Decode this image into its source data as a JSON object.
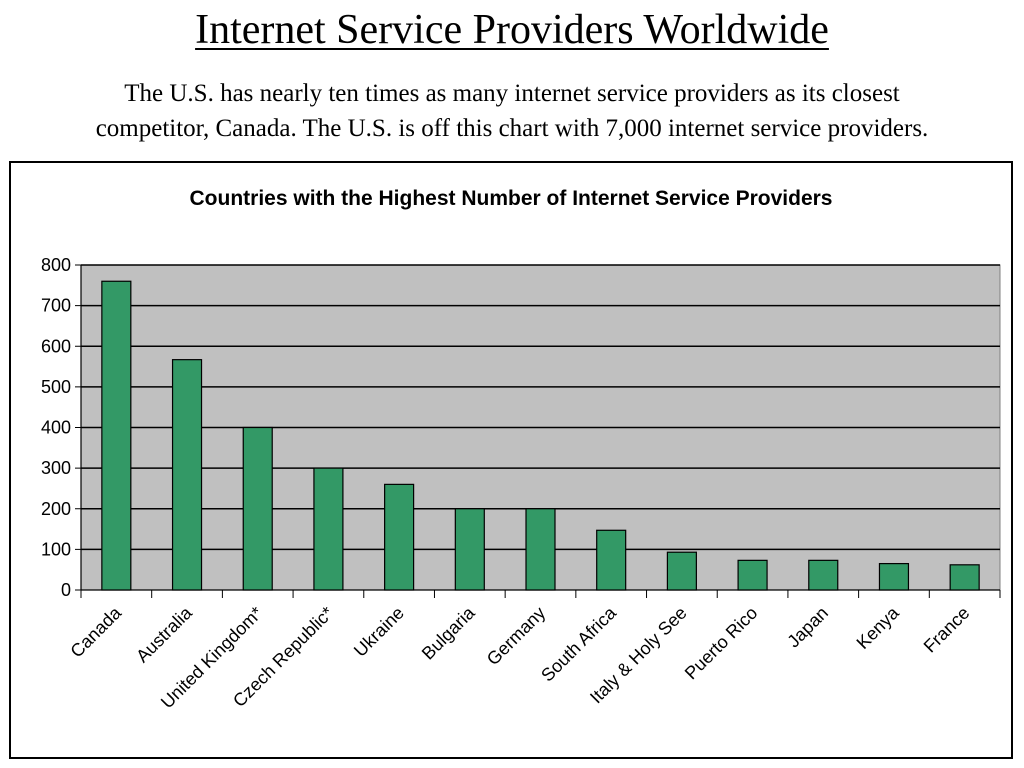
{
  "slide": {
    "title": "Internet Service Providers Worldwide",
    "subtitle_line1": "The U.S. has nearly ten times as many internet service providers as its closest",
    "subtitle_line2": "competitor, Canada.  The U.S. is off this chart with 7,000 internet service providers."
  },
  "chart_data": {
    "type": "bar",
    "title": "Countries with the Highest Number of Internet Service Providers",
    "xlabel": "",
    "ylabel": "",
    "categories": [
      "Canada",
      "Australia",
      "United Kingdom*",
      "Czech Republic*",
      "Ukraine",
      "Bulgaria",
      "Germany",
      "South Africa",
      "Italy & Holy See",
      "Puerto Rico",
      "Japan",
      "Kenya",
      "France"
    ],
    "values": [
      760,
      567,
      400,
      300,
      260,
      200,
      200,
      147,
      93,
      73,
      73,
      65,
      62
    ],
    "ylim": [
      0,
      800
    ],
    "yticks": [
      0,
      100,
      200,
      300,
      400,
      500,
      600,
      700,
      800
    ],
    "grid": true,
    "legend": "none",
    "colors": {
      "bar": "#339966",
      "plot_background": "#c0c0c0",
      "gridline": "#000000"
    }
  }
}
